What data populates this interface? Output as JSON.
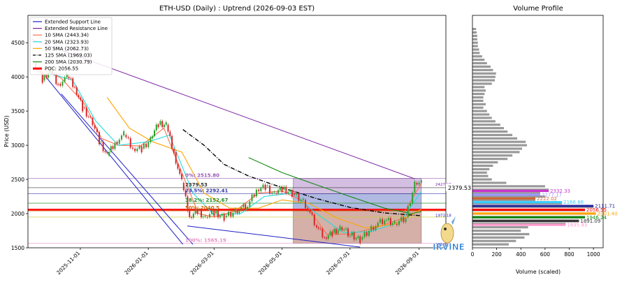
{
  "chart_data": [
    {
      "type": "candlestick",
      "title": "ETH-USD (Daily) : Uptrend (2026-09-03 EST)",
      "ylabel": "Price (USD)",
      "ylim": [
        1500,
        4900
      ],
      "y_ticks": [
        1500,
        2000,
        2500,
        3000,
        3500,
        4000,
        4500
      ],
      "x_range": [
        "2025-09-15",
        "2026-09-25"
      ],
      "x_ticks": [
        "2025-11-01",
        "2026-01-01",
        "2026-03-01",
        "2026-05-01",
        "2026-07-01",
        "2026-09-01"
      ],
      "legend_position": "top-left",
      "legend": [
        {
          "label": "Extended Support Line",
          "color": "#1f1fc8",
          "style": "solid"
        },
        {
          "label": "Extended Resistance Line",
          "color": "#7b1fa2",
          "style": "solid"
        },
        {
          "label": "10 SMA (2443.34)",
          "color": "#ff6f4f",
          "style": "solid"
        },
        {
          "label": "20 SMA (2323.93)",
          "color": "#22dddd",
          "style": "solid"
        },
        {
          "label": "50 SMA (2062.73)",
          "color": "#ffa500",
          "style": "solid"
        },
        {
          "label": "125 SMA (1969.03)",
          "color": "#000000",
          "style": "dashdot"
        },
        {
          "label": "200 SMA (2030.79)",
          "color": "#118811",
          "style": "solid"
        },
        {
          "label": "POC: 2056.55",
          "color": "#ff0000",
          "style": "thick"
        }
      ],
      "series": [
        {
          "name": "Close",
          "kind": "price",
          "points": [
            [
              "2025-09-20",
              4200
            ],
            [
              "2025-09-28",
              3950
            ],
            [
              "2025-10-05",
              4100
            ],
            [
              "2025-10-12",
              3900
            ],
            [
              "2025-10-20",
              4000
            ],
            [
              "2025-10-27",
              3850
            ],
            [
              "2025-11-03",
              3550
            ],
            [
              "2025-11-10",
              3400
            ],
            [
              "2025-11-18",
              3050
            ],
            [
              "2025-11-25",
              2850
            ],
            [
              "2025-12-02",
              3050
            ],
            [
              "2025-12-10",
              3150
            ],
            [
              "2025-12-18",
              2950
            ],
            [
              "2025-12-26",
              2950
            ],
            [
              "2026-01-03",
              3100
            ],
            [
              "2026-01-10",
              3300
            ],
            [
              "2026-01-17",
              3300
            ],
            [
              "2026-01-24",
              2900
            ],
            [
              "2026-01-31",
              2450
            ],
            [
              "2026-02-07",
              1950
            ],
            [
              "2026-02-14",
              2050
            ],
            [
              "2026-02-21",
              1950
            ],
            [
              "2026-03-01",
              2000
            ],
            [
              "2026-03-10",
              1950
            ],
            [
              "2026-03-20",
              2050
            ],
            [
              "2026-03-31",
              2100
            ],
            [
              "2026-04-08",
              2350
            ],
            [
              "2026-04-16",
              2400
            ],
            [
              "2026-04-24",
              2300
            ],
            [
              "2026-05-01",
              2350
            ],
            [
              "2026-05-10",
              2300
            ],
            [
              "2026-05-20",
              2200
            ],
            [
              "2026-06-01",
              1800
            ],
            [
              "2026-06-08",
              1650
            ],
            [
              "2026-06-15",
              1720
            ],
            [
              "2026-06-22",
              1800
            ],
            [
              "2026-07-01",
              1680
            ],
            [
              "2026-07-10",
              1620
            ],
            [
              "2026-07-20",
              1800
            ],
            [
              "2026-08-01",
              1900
            ],
            [
              "2026-08-10",
              1850
            ],
            [
              "2026-08-20",
              1950
            ],
            [
              "2026-08-28",
              2450
            ],
            [
              "2026-09-03",
              2430
            ]
          ]
        },
        {
          "name": "10 SMA (2443.34)",
          "kind": "sma",
          "points": [
            [
              "2025-09-25",
              4150
            ],
            [
              "2025-10-15",
              3980
            ],
            [
              "2025-11-05",
              3600
            ],
            [
              "2025-11-20",
              3100
            ],
            [
              "2025-12-05",
              3000
            ],
            [
              "2025-12-25",
              2990
            ],
            [
              "2026-01-15",
              3250
            ],
            [
              "2026-01-31",
              2600
            ],
            [
              "2026-02-15",
              2000
            ],
            [
              "2026-03-01",
              1950
            ],
            [
              "2026-03-20",
              2040
            ],
            [
              "2026-04-10",
              2300
            ],
            [
              "2026-05-01",
              2330
            ],
            [
              "2026-05-20",
              2180
            ],
            [
              "2026-06-10",
              1700
            ],
            [
              "2026-07-01",
              1700
            ],
            [
              "2026-07-25",
              1800
            ],
            [
              "2026-08-15",
              1920
            ],
            [
              "2026-09-03",
              2443
            ]
          ]
        },
        {
          "name": "20 SMA (2323.93)",
          "kind": "sma",
          "points": [
            [
              "2025-10-05",
              4050
            ],
            [
              "2025-10-25",
              3950
            ],
            [
              "2025-11-15",
              3350
            ],
            [
              "2025-12-05",
              3000
            ],
            [
              "2026-01-01",
              3050
            ],
            [
              "2026-01-20",
              3150
            ],
            [
              "2026-02-10",
              2300
            ],
            [
              "2026-03-01",
              1980
            ],
            [
              "2026-03-25",
              2000
            ],
            [
              "2026-04-15",
              2250
            ],
            [
              "2026-05-10",
              2300
            ],
            [
              "2026-06-01",
              2000
            ],
            [
              "2026-06-25",
              1720
            ],
            [
              "2026-07-20",
              1740
            ],
            [
              "2026-08-15",
              1880
            ],
            [
              "2026-09-03",
              2324
            ]
          ]
        },
        {
          "name": "50 SMA (2062.73)",
          "kind": "sma",
          "points": [
            [
              "2025-11-25",
              3700
            ],
            [
              "2025-12-15",
              3250
            ],
            [
              "2026-01-05",
              3050
            ],
            [
              "2026-01-31",
              2900
            ],
            [
              "2026-02-20",
              2300
            ],
            [
              "2026-03-15",
              2080
            ],
            [
              "2026-04-10",
              2080
            ],
            [
              "2026-05-01",
              2200
            ],
            [
              "2026-05-25",
              2150
            ],
            [
              "2026-06-20",
              1930
            ],
            [
              "2026-07-15",
              1790
            ],
            [
              "2026-08-10",
              1850
            ],
            [
              "2026-09-03",
              2063
            ]
          ]
        },
        {
          "name": "125 SMA (1969.03)",
          "kind": "sma",
          "points": [
            [
              "2026-02-01",
              3230
            ],
            [
              "2026-02-20",
              3000
            ],
            [
              "2026-03-10",
              2720
            ],
            [
              "2026-04-01",
              2550
            ],
            [
              "2026-05-01",
              2380
            ],
            [
              "2026-06-01",
              2220
            ],
            [
              "2026-07-01",
              2090
            ],
            [
              "2026-08-01",
              2010
            ],
            [
              "2026-09-03",
              1969
            ]
          ]
        },
        {
          "name": "200 SMA (2030.79)",
          "kind": "sma",
          "points": [
            [
              "2026-04-01",
              2820
            ],
            [
              "2026-05-01",
              2600
            ],
            [
              "2026-06-01",
              2420
            ],
            [
              "2026-07-01",
              2250
            ],
            [
              "2026-08-01",
              2080
            ],
            [
              "2026-08-25",
              2000
            ],
            [
              "2026-09-03",
              2031
            ]
          ]
        },
        {
          "name": "Extended Resistance Line",
          "kind": "trend",
          "points": [
            [
              "2025-09-18",
              4550
            ],
            [
              "2026-08-28",
              2510
            ]
          ]
        },
        {
          "name": "Extended Support Line",
          "kind": "trend",
          "points": [
            [
              "2025-10-15",
              3750
            ],
            [
              "2026-02-10",
              1550
            ]
          ]
        },
        {
          "name": "Extended Support Line 2",
          "kind": "trend",
          "points": [
            [
              "2025-10-01",
              4000
            ],
            [
              "2026-02-01",
              1550
            ]
          ]
        },
        {
          "name": "Extended Support Line 3",
          "kind": "trend",
          "points": [
            [
              "2026-02-05",
              1820
            ],
            [
              "2026-07-10",
              1510
            ]
          ]
        }
      ],
      "hlines": [
        {
          "value": 2515.8,
          "color": "#9b59b6",
          "label": "0%: 2515.80"
        },
        {
          "value": 2379.53,
          "color": "#333333",
          "label": "2379.53"
        },
        {
          "value": 2292.41,
          "color": "#3333aa",
          "label": "23.5%: 2292.41"
        },
        {
          "value": 2152.67,
          "color": "#228b22",
          "label": "38.2%: 2152.67"
        },
        {
          "value": 2056.55,
          "color": "#ff0000",
          "label": ""
        },
        {
          "value": 2040.5,
          "color": "#cc6600",
          "label": "50%: 2040.5"
        },
        {
          "value": 1950,
          "color": "#cccc33",
          "label": ""
        },
        {
          "value": 1565.19,
          "color": "#e58fc5",
          "label": "100%: 1565.19"
        }
      ],
      "right_labels": [
        {
          "value": 2427.07,
          "text": "2427.07",
          "color": "#7b1fa2"
        },
        {
          "value": 1973.18,
          "text": "1973.18",
          "color": "#1f1fc8"
        },
        {
          "value": 1550.92,
          "text": "1550.92",
          "color": "#1f1fc8"
        }
      ],
      "price_tag": {
        "value": 2379.53,
        "text": "2379.53"
      },
      "zones": [
        {
          "x0": "2026-05-11",
          "x1": "2026-09-03",
          "y0": 2292.41,
          "y1": 2515.8,
          "color": "#b088c8"
        },
        {
          "x0": "2026-05-11",
          "x1": "2026-09-03",
          "y0": 2040.5,
          "y1": 2292.41,
          "color": "#7080c8"
        },
        {
          "x0": "2026-05-11",
          "x1": "2026-09-03",
          "y0": 1565.19,
          "y1": 2040.5,
          "color": "#b07060"
        }
      ],
      "watermark": "IRVINE"
    },
    {
      "type": "barh",
      "title": "Volume Profile",
      "xlabel": "Volume (scaled)",
      "xlim": [
        0,
        1080
      ],
      "x_ticks": [
        0,
        200,
        400,
        600,
        800,
        1000
      ],
      "ylim": [
        1500,
        4900
      ],
      "bins": [
        {
          "price": 4700,
          "vol": 30
        },
        {
          "price": 4650,
          "vol": 35
        },
        {
          "price": 4600,
          "vol": 40
        },
        {
          "price": 4550,
          "vol": 40
        },
        {
          "price": 4500,
          "vol": 45
        },
        {
          "price": 4450,
          "vol": 45
        },
        {
          "price": 4400,
          "vol": 55
        },
        {
          "price": 4350,
          "vol": 60
        },
        {
          "price": 4300,
          "vol": 80
        },
        {
          "price": 4250,
          "vol": 100
        },
        {
          "price": 4200,
          "vol": 120
        },
        {
          "price": 4150,
          "vol": 150
        },
        {
          "price": 4100,
          "vol": 170
        },
        {
          "price": 4050,
          "vol": 195
        },
        {
          "price": 4000,
          "vol": 190
        },
        {
          "price": 3950,
          "vol": 185
        },
        {
          "price": 3900,
          "vol": 160
        },
        {
          "price": 3850,
          "vol": 100
        },
        {
          "price": 3800,
          "vol": 110
        },
        {
          "price": 3750,
          "vol": 100
        },
        {
          "price": 3700,
          "vol": 90
        },
        {
          "price": 3650,
          "vol": 90
        },
        {
          "price": 3600,
          "vol": 110
        },
        {
          "price": 3550,
          "vol": 90
        },
        {
          "price": 3500,
          "vol": 120
        },
        {
          "price": 3450,
          "vol": 140
        },
        {
          "price": 3400,
          "vol": 160
        },
        {
          "price": 3350,
          "vol": 190
        },
        {
          "price": 3300,
          "vol": 230
        },
        {
          "price": 3250,
          "vol": 260
        },
        {
          "price": 3200,
          "vol": 290
        },
        {
          "price": 3150,
          "vol": 330
        },
        {
          "price": 3100,
          "vol": 370
        },
        {
          "price": 3050,
          "vol": 440
        },
        {
          "price": 3000,
          "vol": 450
        },
        {
          "price": 2950,
          "vol": 410
        },
        {
          "price": 2900,
          "vol": 390
        },
        {
          "price": 2850,
          "vol": 330
        },
        {
          "price": 2800,
          "vol": 290
        },
        {
          "price": 2750,
          "vol": 210
        },
        {
          "price": 2700,
          "vol": 170
        },
        {
          "price": 2650,
          "vol": 140
        },
        {
          "price": 2600,
          "vol": 120
        },
        {
          "price": 2550,
          "vol": 130
        },
        {
          "price": 2500,
          "vol": 160
        },
        {
          "price": 2450,
          "vol": 280
        },
        {
          "price": 2400,
          "vol": 600
        },
        {
          "price": 2350,
          "vol": 630
        },
        {
          "price": 2300,
          "vol": 560
        },
        {
          "price": 2250,
          "vol": 600
        },
        {
          "price": 2200,
          "vol": 520
        },
        {
          "price": 2150,
          "vol": 740
        },
        {
          "price": 2100,
          "vol": 1000
        },
        {
          "price": 2050,
          "vol": 930
        },
        {
          "price": 2000,
          "vol": 1020
        },
        {
          "price": 1950,
          "vol": 930
        },
        {
          "price": 1900,
          "vol": 880
        },
        {
          "price": 1850,
          "vol": 770
        },
        {
          "price": 1800,
          "vol": 460
        },
        {
          "price": 1750,
          "vol": 400
        },
        {
          "price": 1700,
          "vol": 470
        },
        {
          "price": 1650,
          "vol": 430
        },
        {
          "price": 1600,
          "vol": 360
        },
        {
          "price": 1550,
          "vol": 300
        }
      ],
      "markers": [
        {
          "price": 2332.33,
          "text": "2332.33",
          "color": "#cc33cc"
        },
        {
          "price": 2277.17,
          "text": "2277.17",
          "color": "#9999ff"
        },
        {
          "price": 2222.02,
          "text": "2222.02",
          "color": "#cc6633"
        },
        {
          "price": 2166.86,
          "text": "2166.86",
          "color": "#33ccff"
        },
        {
          "price": 2111.71,
          "text": "2111.71",
          "color": "#222299"
        },
        {
          "price": 2056.55,
          "text": "2056.55",
          "color": "#ff0000"
        },
        {
          "price": 2001.4,
          "text": "2001.40",
          "color": "#ffa500"
        },
        {
          "price": 1946.24,
          "text": "1946.24",
          "color": "#118811"
        },
        {
          "price": 1891.09,
          "text": "1891.09",
          "color": "#333333"
        },
        {
          "price": 1835.93,
          "text": "1835.93",
          "color": "#ff99cc"
        }
      ]
    }
  ]
}
